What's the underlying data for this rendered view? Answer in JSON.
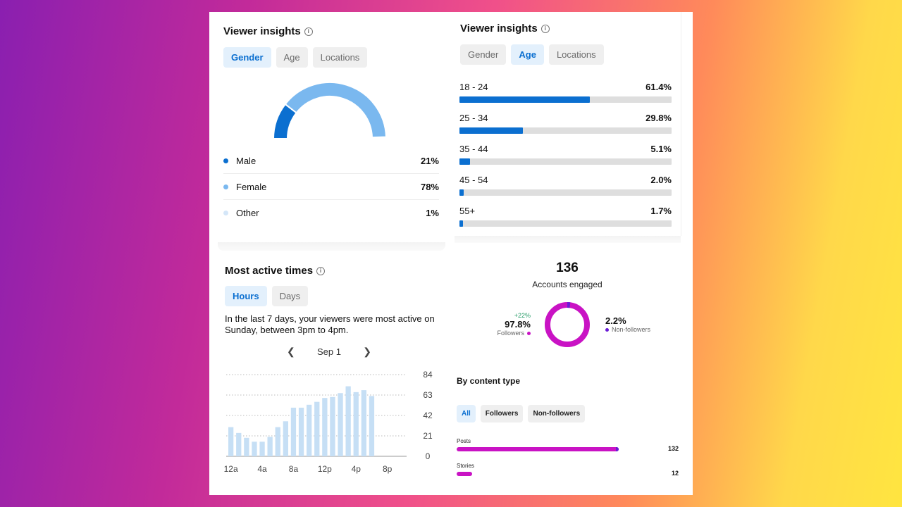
{
  "gender_card": {
    "title": "Viewer insights",
    "tabs": [
      "Gender",
      "Age",
      "Locations"
    ],
    "active_tab": "Gender",
    "items": [
      {
        "label": "Male",
        "pct": "21%",
        "value": 21,
        "color": "#0b6fd0"
      },
      {
        "label": "Female",
        "pct": "78%",
        "value": 78,
        "color": "#7ab8ef"
      },
      {
        "label": "Other",
        "pct": "1%",
        "value": 1,
        "color": "#d4e6f8"
      }
    ]
  },
  "age_card": {
    "title": "Viewer insights",
    "tabs": [
      "Gender",
      "Age",
      "Locations"
    ],
    "active_tab": "Age",
    "items": [
      {
        "label": "18 - 24",
        "pct": "61.4%",
        "value": 61.4
      },
      {
        "label": "25 - 34",
        "pct": "29.8%",
        "value": 29.8
      },
      {
        "label": "35 - 44",
        "pct": "5.1%",
        "value": 5.1
      },
      {
        "label": "45 - 54",
        "pct": "2.0%",
        "value": 2.0
      },
      {
        "label": "55+",
        "pct": "1.7%",
        "value": 1.7
      }
    ]
  },
  "active_times": {
    "title": "Most active times",
    "tabs": [
      "Hours",
      "Days"
    ],
    "active_tab": "Hours",
    "description": "In the last 7 days, your viewers were most active on Sunday, between 3pm to 4pm.",
    "date_label": "Sep 1"
  },
  "chart_data": {
    "type": "bar",
    "categories": [
      "12a",
      "1a",
      "2a",
      "3a",
      "4a",
      "5a",
      "6a",
      "7a",
      "8a",
      "9a",
      "10a",
      "11a",
      "12p",
      "1p",
      "2p",
      "3p",
      "4p",
      "5p",
      "6p",
      "7p",
      "8p",
      "9p",
      "10p",
      "11p"
    ],
    "values": [
      30,
      24,
      19,
      15,
      15,
      20,
      30,
      36,
      50,
      50,
      53,
      56,
      60,
      61,
      65,
      72,
      66,
      68,
      62,
      null,
      null,
      null,
      null,
      null
    ],
    "x_tick_labels": [
      "12a",
      "4a",
      "8a",
      "12p",
      "4p",
      "8p"
    ],
    "y_ticks": [
      84,
      63,
      42,
      21,
      0
    ],
    "ylim": [
      0,
      84
    ],
    "grid": true,
    "bar_color": "#c6dff5"
  },
  "engagement": {
    "count": "136",
    "count_label": "Accounts engaged",
    "followers_change": "+22%",
    "followers_pct": "97.8%",
    "followers_value": 97.8,
    "followers_label": "Followers",
    "non_followers_pct": "2.2%",
    "non_followers_value": 2.2,
    "non_followers_label": "Non-followers",
    "followers_color": "#c913c4",
    "non_followers_color": "#6a1bd6"
  },
  "content_type": {
    "title": "By content type",
    "tabs": [
      "All",
      "Followers",
      "Non-followers"
    ],
    "active_tab": "All",
    "items": [
      {
        "label": "Posts",
        "value": "132",
        "count": 132
      },
      {
        "label": "Stories",
        "value": "12",
        "count": 12
      }
    ]
  },
  "icons": {
    "info": "info-icon",
    "prev": "chevron-left-icon",
    "next": "chevron-right-icon"
  }
}
